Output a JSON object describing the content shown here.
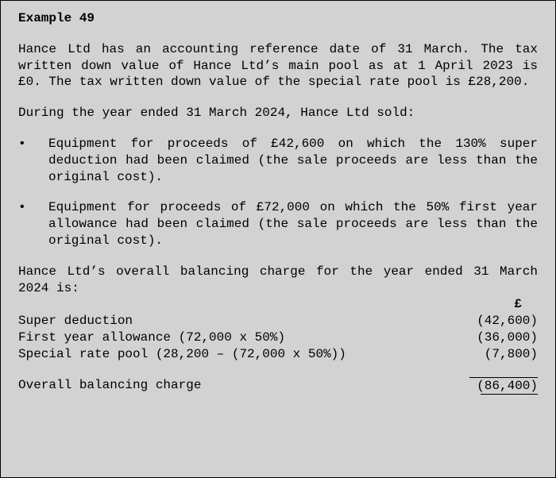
{
  "colors": {
    "background": "#d2d2d2",
    "text": "#000000",
    "border": "#000000"
  },
  "typography": {
    "fontFamily": "Courier New, monospace",
    "fontSize": 16,
    "lineHeight": 1.3
  },
  "title": "Example 49",
  "paragraph1": "Hance Ltd has an accounting reference date of 31 March. The tax written down value of Hance Ltd’s main pool as at 1 April 2023 is £0. The tax written down value of the special rate pool is £28,200.",
  "lead": "During the year ended 31 March 2024, Hance Ltd sold:",
  "bullets": [
    "Equipment for proceeds of £42,600 on which the 130% super deduction had been claimed (the sale proceeds are less than the original cost).",
    "Equipment for proceeds of £72,000 on which the 50% first year allowance had been claimed (the sale proceeds are less than the original cost)."
  ],
  "calcLead": "Hance Ltd’s overall balancing charge for the year ended 31 March 2024 is:",
  "currencySymbol": "£",
  "rows": [
    {
      "label": "Super deduction",
      "amount": "(42,600)"
    },
    {
      "label": "First year allowance (72,000 x 50%)",
      "amount": "(36,000)"
    },
    {
      "label": "Special rate pool (28,200 – (72,000 x 50%))",
      "amount": "(7,800)"
    }
  ],
  "total": {
    "label": "Overall balancing charge",
    "amount": "(86,400)"
  }
}
